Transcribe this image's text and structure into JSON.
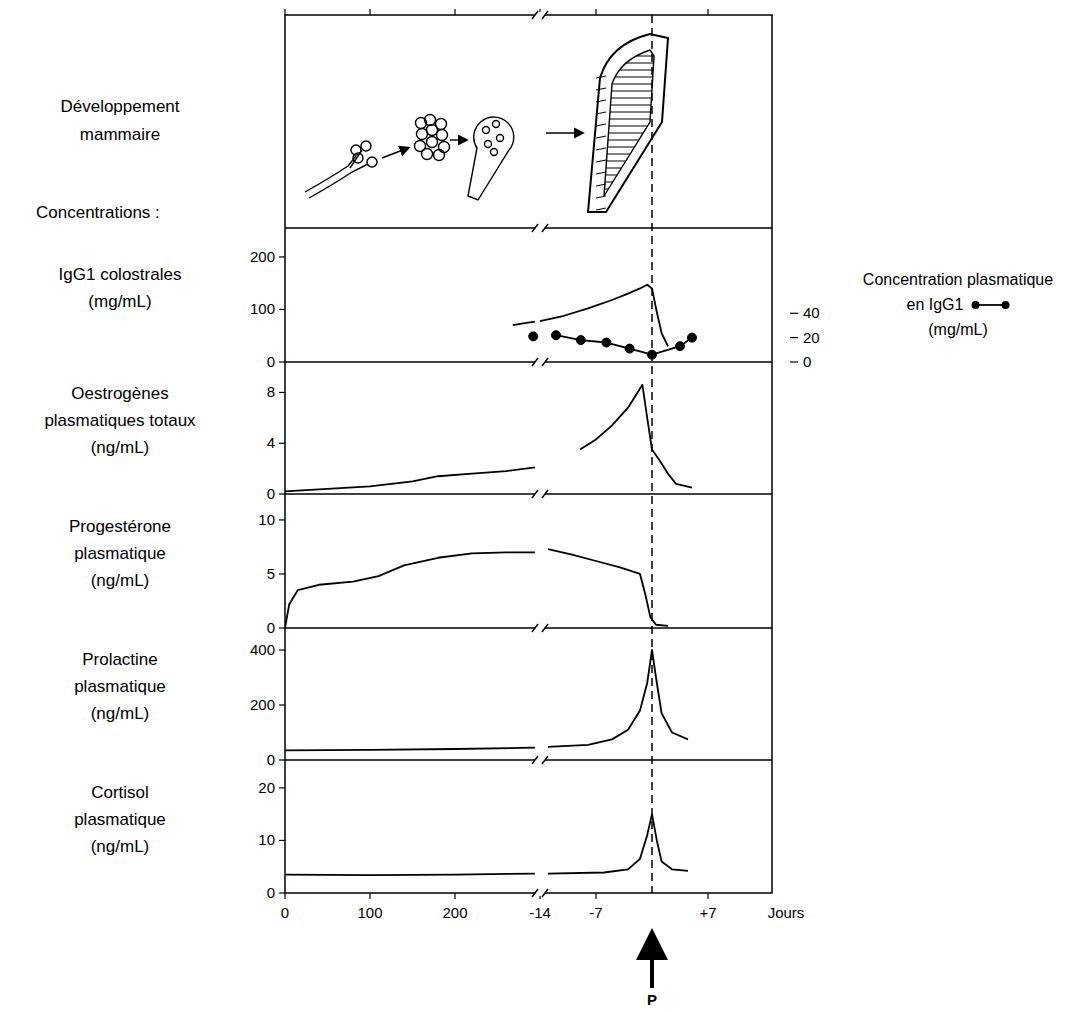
{
  "header": {
    "label": [
      "Développement",
      "mammaire"
    ],
    "subheading": "Concentrations :"
  },
  "x_axis": {
    "label": "Jours",
    "segments": [
      {
        "xlim": [
          0,
          300
        ],
        "xticks": [
          0,
          100,
          200
        ]
      },
      {
        "xlim": [
          -14,
          15
        ],
        "xticks": [
          -14,
          -7,
          {
            "value": 7,
            "label": "+7"
          }
        ],
        "event": {
          "x": 0,
          "label": "P"
        }
      }
    ]
  },
  "chart_data": [
    {
      "type": "line",
      "ylabel": [
        "IgG1 colostrales",
        "(mg/mL)"
      ],
      "ylim": [
        0,
        255
      ],
      "yticks": [
        0,
        100,
        200
      ],
      "y2label": [
        "Concentration plasmatique",
        "en IgG1",
        "(mg/mL)"
      ],
      "y2lim": [
        0,
        110
      ],
      "y2ticks": [
        0,
        20,
        40
      ],
      "series": [
        {
          "color": "#000000",
          "segments": [
            {
              "x": [
                268,
                282,
                294
              ],
              "values": [
                70,
                74,
                77
              ]
            },
            {
              "x": [
                -14,
                -11,
                -8,
                -5,
                -3,
                -1.5,
                -0.6,
                0,
                0.6,
                1.2,
                2
              ],
              "values": [
                78,
                88,
                102,
                118,
                130,
                140,
                147,
                140,
                95,
                55,
                30
              ]
            }
          ]
        },
        {
          "color": "#000000",
          "axis": "y2",
          "marker": "circle",
          "segments": [
            {
              "x": [
                292
              ],
              "values": [
                21
              ]
            },
            {
              "x": [
                -12,
                -8.9,
                -5.7,
                -2.8,
                0,
                3.5,
                5
              ],
              "values": [
                22,
                18,
                16,
                11,
                6,
                13,
                20
              ]
            }
          ]
        }
      ]
    },
    {
      "type": "line",
      "ylabel": [
        "Oestrogènes",
        "plasmatiques totaux",
        "(ng/mL)"
      ],
      "ylim": [
        0,
        10.4
      ],
      "yticks": [
        0,
        4,
        8
      ],
      "series": [
        {
          "color": "#000000",
          "segments": [
            {
              "x": [
                0,
                50,
                100,
                150,
                180,
                220,
                260,
                294
              ],
              "values": [
                0.2,
                0.4,
                0.6,
                1.0,
                1.4,
                1.6,
                1.8,
                2.1
              ]
            },
            {
              "x": [
                -9,
                -7,
                -5,
                -3,
                -2,
                -1.2,
                -0.6,
                0,
                1,
                2,
                3,
                5
              ],
              "values": [
                3.5,
                4.3,
                5.4,
                6.8,
                7.8,
                8.6,
                6.0,
                3.5,
                2.6,
                1.6,
                0.8,
                0.5
              ]
            }
          ]
        }
      ]
    },
    {
      "type": "line",
      "ylabel": [
        "Progestérone",
        "plasmatique",
        "(ng/mL)"
      ],
      "ylim": [
        0,
        12.4
      ],
      "yticks": [
        0,
        5,
        10
      ],
      "series": [
        {
          "color": "#000000",
          "segments": [
            {
              "x": [
                0,
                5,
                15,
                40,
                80,
                110,
                140,
                180,
                220,
                260,
                294
              ],
              "values": [
                0,
                2.2,
                3.5,
                4.0,
                4.3,
                4.8,
                5.8,
                6.5,
                6.9,
                7.0,
                7.0
              ]
            },
            {
              "x": [
                -13,
                -10,
                -7,
                -4,
                -1.5,
                -0.8,
                -0.2,
                0.5,
                2
              ],
              "values": [
                7.3,
                6.8,
                6.2,
                5.6,
                5.0,
                3.0,
                1.0,
                0.3,
                0.2
              ]
            }
          ]
        }
      ]
    },
    {
      "type": "line",
      "ylabel": [
        "Prolactine",
        "plasmatique",
        "(ng/mL)"
      ],
      "ylim": [
        0,
        480
      ],
      "yticks": [
        0,
        200,
        400
      ],
      "series": [
        {
          "color": "#000000",
          "segments": [
            {
              "x": [
                0,
                100,
                200,
                294
              ],
              "values": [
                35,
                37,
                40,
                45
              ]
            },
            {
              "x": [
                -13,
                -8,
                -5,
                -3,
                -1.5,
                -0.6,
                0,
                0.5,
                1.2,
                2.5,
                4.5
              ],
              "values": [
                48,
                55,
                75,
                110,
                180,
                280,
                400,
                300,
                170,
                100,
                75
              ]
            }
          ]
        }
      ]
    },
    {
      "type": "line",
      "ylabel": [
        "Cortisol",
        "plasmatique",
        "(ng/mL)"
      ],
      "ylim": [
        0,
        25.3
      ],
      "yticks": [
        0,
        10,
        20
      ],
      "series": [
        {
          "color": "#000000",
          "segments": [
            {
              "x": [
                0,
                100,
                200,
                294
              ],
              "values": [
                3.5,
                3.4,
                3.5,
                3.7
              ]
            },
            {
              "x": [
                -13,
                -6,
                -3,
                -1.5,
                -0.6,
                0,
                0.6,
                1.2,
                2.5,
                4.5
              ],
              "values": [
                3.7,
                3.9,
                4.5,
                6.5,
                11,
                15,
                10,
                6,
                4.5,
                4.2
              ]
            }
          ]
        }
      ]
    }
  ]
}
